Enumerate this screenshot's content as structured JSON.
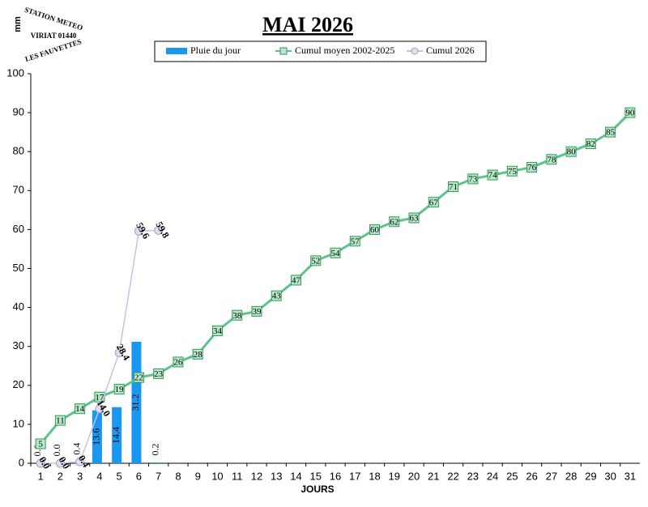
{
  "chart_data": {
    "type": "bar_line",
    "title": "MAI 2026",
    "ylabel": "mm",
    "xlabel": "JOURS",
    "logo": [
      "STATION METEO",
      "VIRIAT 01440",
      "LES FAUVETTES"
    ],
    "categories": [
      1,
      2,
      3,
      4,
      5,
      6,
      7,
      8,
      9,
      10,
      11,
      12,
      13,
      14,
      15,
      16,
      17,
      18,
      19,
      20,
      21,
      22,
      23,
      24,
      25,
      26,
      27,
      28,
      29,
      30,
      31
    ],
    "ylim": [
      0,
      100
    ],
    "yticks": [
      0,
      10,
      20,
      30,
      40,
      50,
      60,
      70,
      80,
      90,
      100
    ],
    "series": [
      {
        "name": "Pluie du jour",
        "kind": "bar",
        "color": "#1a98f0",
        "values": [
          0.0,
          0.0,
          0.4,
          13.6,
          14.4,
          31.2,
          0.2,
          null,
          null,
          null,
          null,
          null,
          null,
          null,
          null,
          null,
          null,
          null,
          null,
          null,
          null,
          null,
          null,
          null,
          null,
          null,
          null,
          null,
          null,
          null,
          null
        ],
        "value_labels": [
          "0.0",
          "0.0",
          "0.4",
          "13.6",
          "14.4",
          "31.2",
          "0.2",
          null,
          null,
          null,
          null,
          null,
          null,
          null,
          null,
          null,
          null,
          null,
          null,
          null,
          null,
          null,
          null,
          null,
          null,
          null,
          null,
          null,
          null,
          null,
          null
        ]
      },
      {
        "name": "Cumul moyen 2002-2025",
        "kind": "line",
        "color": "#5cc48a",
        "marker": "square",
        "values": [
          5,
          11,
          14,
          17,
          19,
          22,
          23,
          26,
          28,
          34,
          38,
          39,
          43,
          47,
          52,
          54,
          57,
          60,
          62,
          63,
          67,
          71,
          73,
          74,
          75,
          76,
          78,
          80,
          82,
          85,
          90
        ]
      },
      {
        "name": "Cumul 2026",
        "kind": "line",
        "color": "#c9c0e2",
        "marker": "circle",
        "values": [
          0.0,
          0.0,
          0.4,
          14.0,
          28.4,
          59.6,
          59.8,
          null,
          null,
          null,
          null,
          null,
          null,
          null,
          null,
          null,
          null,
          null,
          null,
          null,
          null,
          null,
          null,
          null,
          null,
          null,
          null,
          null,
          null,
          null,
          null
        ],
        "value_labels": [
          "0.0",
          "0.0",
          "0.4",
          "14.0",
          "28.4",
          "59.6",
          "59.8",
          null,
          null,
          null,
          null,
          null,
          null,
          null,
          null,
          null,
          null,
          null,
          null,
          null,
          null,
          null,
          null,
          null,
          null,
          null,
          null,
          null,
          null,
          null,
          null
        ]
      }
    ]
  }
}
